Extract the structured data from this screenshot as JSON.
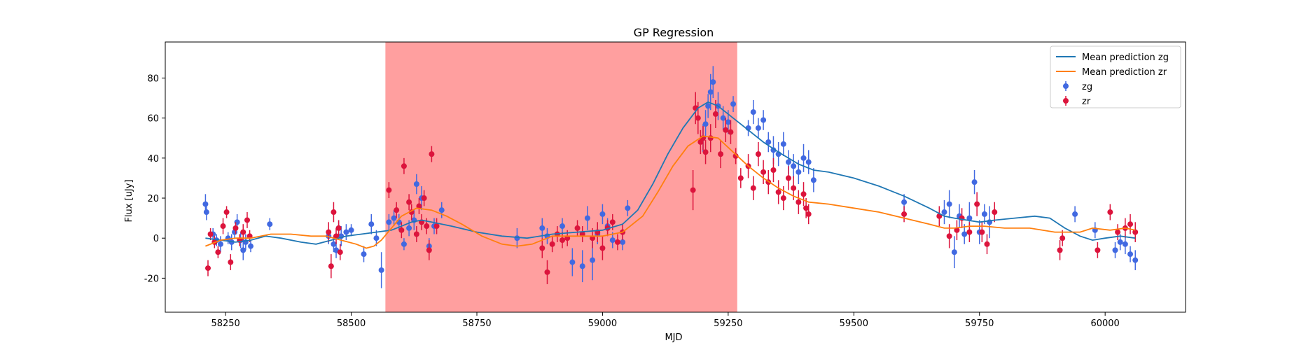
{
  "chart_data": {
    "type": "scatter",
    "title": "GP Regression",
    "xlabel": "MJD",
    "ylabel": "Flux [uJy]",
    "xlim": [
      58130,
      60160
    ],
    "ylim": [
      -37,
      98
    ],
    "xticks": [
      58250,
      58500,
      58750,
      59000,
      59250,
      59500,
      59750,
      60000
    ],
    "yticks": [
      -20,
      0,
      20,
      40,
      60,
      80
    ],
    "grid": false,
    "legend_position": "top-right",
    "shaded_region": {
      "x_start": 58568,
      "x_end": 59268,
      "color": "#ff9f9f"
    },
    "lines": [
      {
        "name": "Mean prediction zg",
        "color": "#1f77b4",
        "points": [
          [
            58210,
            0
          ],
          [
            58240,
            -1
          ],
          [
            58270,
            -2
          ],
          [
            58300,
            -1
          ],
          [
            58330,
            1
          ],
          [
            58360,
            0
          ],
          [
            58400,
            -2
          ],
          [
            58430,
            -3
          ],
          [
            58460,
            -1
          ],
          [
            58490,
            1
          ],
          [
            58520,
            2
          ],
          [
            58550,
            3
          ],
          [
            58580,
            4
          ],
          [
            58600,
            6
          ],
          [
            58620,
            8
          ],
          [
            58640,
            9
          ],
          [
            58660,
            8
          ],
          [
            58700,
            6
          ],
          [
            58750,
            3
          ],
          [
            58800,
            1
          ],
          [
            58850,
            0
          ],
          [
            58900,
            2
          ],
          [
            58950,
            3
          ],
          [
            59000,
            4
          ],
          [
            59040,
            7
          ],
          [
            59070,
            14
          ],
          [
            59100,
            27
          ],
          [
            59130,
            42
          ],
          [
            59160,
            55
          ],
          [
            59190,
            65
          ],
          [
            59210,
            68
          ],
          [
            59230,
            66
          ],
          [
            59260,
            60
          ],
          [
            59290,
            54
          ],
          [
            59320,
            48
          ],
          [
            59350,
            43
          ],
          [
            59390,
            37
          ],
          [
            59420,
            34
          ],
          [
            59450,
            33
          ],
          [
            59500,
            30
          ],
          [
            59550,
            26
          ],
          [
            59600,
            21
          ],
          [
            59650,
            15
          ],
          [
            59680,
            11
          ],
          [
            59700,
            10
          ],
          [
            59750,
            8
          ],
          [
            59780,
            9
          ],
          [
            59820,
            10
          ],
          [
            59860,
            11
          ],
          [
            59890,
            10
          ],
          [
            59920,
            5
          ],
          [
            59950,
            1
          ],
          [
            59975,
            -1
          ],
          [
            60000,
            0
          ],
          [
            60030,
            1
          ],
          [
            60060,
            0
          ]
        ]
      },
      {
        "name": "Mean prediction zr",
        "color": "#ff7f0e",
        "points": [
          [
            58210,
            -4
          ],
          [
            58240,
            -1
          ],
          [
            58270,
            0
          ],
          [
            58300,
            0
          ],
          [
            58340,
            2
          ],
          [
            58380,
            2
          ],
          [
            58420,
            1
          ],
          [
            58450,
            1
          ],
          [
            58480,
            -1
          ],
          [
            58510,
            -3
          ],
          [
            58530,
            -5
          ],
          [
            58545,
            -4
          ],
          [
            58560,
            -1
          ],
          [
            58580,
            5
          ],
          [
            58600,
            11
          ],
          [
            58630,
            15
          ],
          [
            58660,
            14
          ],
          [
            58690,
            11
          ],
          [
            58720,
            7
          ],
          [
            58760,
            1
          ],
          [
            58800,
            -3
          ],
          [
            58830,
            -4
          ],
          [
            58860,
            -3
          ],
          [
            58900,
            1
          ],
          [
            58950,
            1
          ],
          [
            59000,
            1
          ],
          [
            59040,
            3
          ],
          [
            59080,
            11
          ],
          [
            59110,
            23
          ],
          [
            59140,
            36
          ],
          [
            59170,
            46
          ],
          [
            59200,
            51
          ],
          [
            59230,
            50
          ],
          [
            59260,
            43
          ],
          [
            59290,
            36
          ],
          [
            59320,
            30
          ],
          [
            59350,
            25
          ],
          [
            59380,
            21
          ],
          [
            59410,
            18
          ],
          [
            59450,
            17
          ],
          [
            59500,
            15
          ],
          [
            59550,
            13
          ],
          [
            59600,
            10
          ],
          [
            59650,
            7
          ],
          [
            59680,
            5
          ],
          [
            59700,
            5
          ],
          [
            59730,
            6
          ],
          [
            59760,
            6
          ],
          [
            59800,
            5
          ],
          [
            59850,
            5
          ],
          [
            59900,
            3
          ],
          [
            59950,
            3
          ],
          [
            59975,
            5
          ],
          [
            60010,
            4
          ],
          [
            60040,
            5
          ],
          [
            60060,
            4
          ]
        ]
      }
    ],
    "series": [
      {
        "name": "zg",
        "color": "#4169e1",
        "x": [
          58210,
          58212,
          58225,
          58232,
          58240,
          58255,
          58262,
          58268,
          58273,
          58280,
          58285,
          58290,
          58300,
          58338,
          58455,
          58465,
          58470,
          58475,
          58480,
          58490,
          58500,
          58525,
          58540,
          58550,
          58560,
          58575,
          58585,
          58595,
          58605,
          58615,
          58625,
          58630,
          58640,
          58655,
          58665,
          58680,
          58830,
          58880,
          58890,
          58920,
          58940,
          58960,
          58970,
          58980,
          58990,
          59000,
          59010,
          59020,
          59040,
          59050,
          59200,
          59205,
          59210,
          59215,
          59220,
          59230,
          59240,
          59250,
          59260,
          59290,
          59300,
          59310,
          59320,
          59330,
          59340,
          59350,
          59360,
          59370,
          59380,
          59390,
          59400,
          59410,
          59420,
          59600,
          59680,
          59690,
          59700,
          59710,
          59720,
          59730,
          59740,
          59750,
          59760,
          59770,
          59940,
          59980,
          60020,
          60030,
          60040,
          60050,
          60060
        ],
        "y": [
          17,
          13,
          2,
          -1,
          -3,
          0,
          -2,
          3,
          8,
          -1,
          -6,
          -2,
          -4,
          7,
          1,
          -3,
          -6,
          5,
          1,
          3,
          4,
          -8,
          7,
          0,
          -16,
          8,
          10,
          8,
          -3,
          5,
          9,
          27,
          20,
          -4,
          6,
          14,
          0,
          5,
          1,
          6,
          -12,
          -14,
          10,
          -11,
          2,
          12,
          6,
          -1,
          -2,
          15,
          50,
          57,
          66,
          73,
          78,
          66,
          60,
          58,
          67,
          55,
          63,
          55,
          59,
          48,
          44,
          42,
          47,
          38,
          36,
          33,
          40,
          38,
          29,
          18,
          13,
          17,
          -7,
          11,
          2,
          10,
          28,
          3,
          12,
          8,
          12,
          4,
          -6,
          -2,
          -3,
          -8,
          -11
        ],
        "err": [
          5,
          4,
          3,
          3,
          4,
          3,
          4,
          3,
          4,
          4,
          5,
          4,
          3,
          3,
          4,
          4,
          4,
          4,
          5,
          4,
          3,
          4,
          5,
          4,
          9,
          4,
          4,
          4,
          3,
          4,
          5,
          5,
          6,
          4,
          4,
          4,
          5,
          5,
          4,
          4,
          7,
          8,
          6,
          10,
          5,
          5,
          4,
          4,
          4,
          4,
          7,
          7,
          6,
          9,
          8,
          7,
          6,
          6,
          4,
          4,
          6,
          5,
          5,
          5,
          7,
          6,
          6,
          6,
          6,
          6,
          7,
          6,
          6,
          4,
          6,
          7,
          8,
          6,
          5,
          8,
          6,
          6,
          5,
          8,
          4,
          4,
          4,
          4,
          5,
          4,
          5
        ]
      },
      {
        "name": "zr",
        "color": "#dc143c",
        "x": [
          58215,
          58220,
          58228,
          58235,
          58245,
          58252,
          58260,
          58270,
          58278,
          58285,
          58293,
          58298,
          58455,
          58460,
          58465,
          58470,
          58475,
          58478,
          58575,
          58590,
          58600,
          58605,
          58615,
          58620,
          58630,
          58635,
          58640,
          58645,
          58650,
          58655,
          58660,
          58670,
          58880,
          58890,
          58900,
          58910,
          58920,
          58930,
          58950,
          58960,
          58980,
          58990,
          59000,
          59010,
          59020,
          59030,
          59040,
          59180,
          59185,
          59190,
          59195,
          59200,
          59205,
          59215,
          59225,
          59235,
          59245,
          59255,
          59265,
          59275,
          59290,
          59300,
          59310,
          59320,
          59330,
          59340,
          59350,
          59360,
          59370,
          59380,
          59390,
          59400,
          59405,
          59410,
          59600,
          59670,
          59690,
          59705,
          59715,
          59730,
          59745,
          59755,
          59765,
          59780,
          59910,
          59915,
          59985,
          60010,
          60025,
          60040,
          60050,
          60060
        ],
        "y": [
          -15,
          2,
          -2,
          -7,
          6,
          13,
          -12,
          5,
          -1,
          3,
          9,
          1,
          3,
          -14,
          13,
          1,
          5,
          -7,
          24,
          14,
          4,
          36,
          18,
          13,
          2,
          16,
          8,
          20,
          6,
          -6,
          42,
          6,
          -5,
          -17,
          -3,
          2,
          -1,
          0,
          5,
          2,
          0,
          3,
          -5,
          5,
          8,
          -2,
          3,
          24,
          65,
          60,
          48,
          50,
          43,
          50,
          62,
          42,
          54,
          53,
          41,
          30,
          36,
          25,
          42,
          33,
          28,
          34,
          23,
          20,
          30,
          25,
          18,
          22,
          15,
          12,
          12,
          11,
          1,
          4,
          10,
          3,
          17,
          3,
          -3,
          13,
          -6,
          0,
          -6,
          13,
          3,
          5,
          7,
          3
        ],
        "err": [
          4,
          3,
          3,
          3,
          4,
          3,
          4,
          3,
          3,
          4,
          4,
          3,
          5,
          6,
          5,
          4,
          4,
          4,
          4,
          4,
          4,
          4,
          4,
          4,
          4,
          4,
          4,
          4,
          4,
          5,
          4,
          4,
          5,
          6,
          4,
          4,
          4,
          4,
          4,
          4,
          5,
          5,
          6,
          4,
          4,
          4,
          4,
          10,
          8,
          8,
          6,
          6,
          6,
          7,
          7,
          7,
          6,
          6,
          4,
          5,
          6,
          6,
          6,
          6,
          6,
          6,
          6,
          6,
          6,
          6,
          6,
          6,
          5,
          5,
          4,
          5,
          6,
          5,
          5,
          5,
          6,
          5,
          5,
          5,
          5,
          4,
          4,
          4,
          4,
          5,
          5,
          5
        ]
      }
    ]
  }
}
